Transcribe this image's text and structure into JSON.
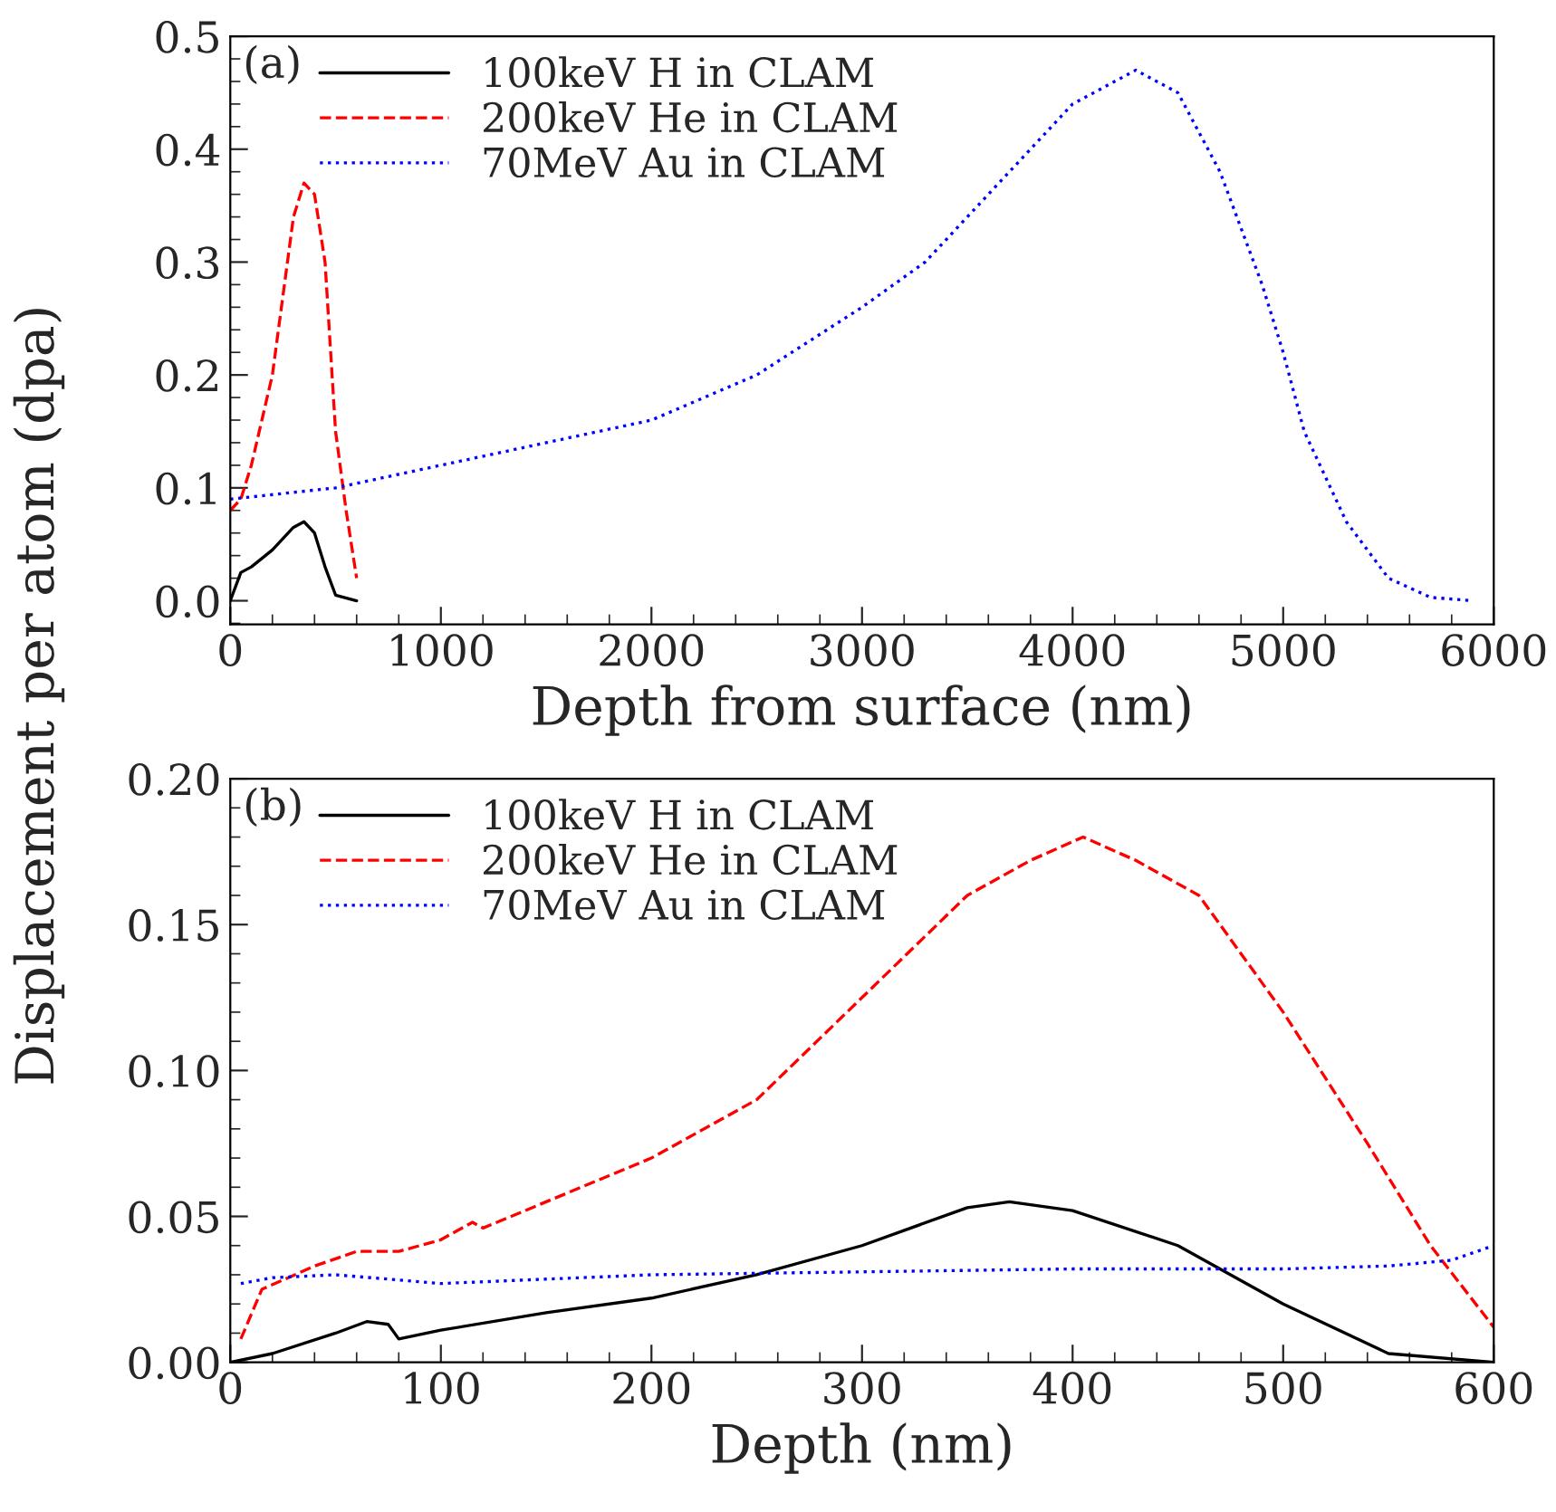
{
  "chart_data": [
    {
      "type": "line",
      "ylabel": "Displacement per atom (dpa)",
      "xlabel": "Depth from surface (nm)",
      "annotations": [
        "(a)"
      ],
      "xlim": [
        0,
        6000
      ],
      "ylim": [
        -0.021,
        0.5
      ],
      "xticks": [
        0,
        1000,
        2000,
        3000,
        4000,
        5000,
        6000
      ],
      "yticks": [
        {
          "value": 0,
          "label": "0.0"
        },
        {
          "value": 0.1,
          "label": "0.1"
        },
        {
          "value": 0.2,
          "label": "0.2"
        },
        {
          "value": 0.3,
          "label": "0.3"
        },
        {
          "value": 0.4,
          "label": "0.4"
        },
        {
          "value": 0.5,
          "label": "0.5"
        }
      ],
      "legend": "top left",
      "grid": false,
      "series": [
        {
          "name": "100keV H in CLAM",
          "color": "#000000",
          "line_style": "solid",
          "x": [
            0,
            50,
            100,
            200,
            300,
            350,
            400,
            450,
            500,
            600
          ],
          "values": [
            0.0,
            0.025,
            0.03,
            0.045,
            0.065,
            0.07,
            0.06,
            0.03,
            0.005,
            0.0
          ]
        },
        {
          "name": "200keV He in CLAM",
          "color": "#ff0000",
          "line_style": "dashed",
          "x": [
            0,
            50,
            100,
            200,
            250,
            300,
            350,
            400,
            450,
            500,
            550,
            600
          ],
          "values": [
            0.08,
            0.09,
            0.12,
            0.2,
            0.27,
            0.34,
            0.37,
            0.36,
            0.3,
            0.15,
            0.08,
            0.02
          ]
        },
        {
          "name": "70MeV Au in CLAM",
          "color": "#0000ff",
          "line_style": "dotted",
          "x": [
            0,
            500,
            1000,
            1500,
            2000,
            2500,
            3000,
            3300,
            3500,
            3800,
            4000,
            4300,
            4500,
            4700,
            4900,
            5000,
            5100,
            5300,
            5500,
            5700,
            5900
          ],
          "values": [
            0.09,
            0.1,
            0.12,
            0.14,
            0.16,
            0.2,
            0.26,
            0.3,
            0.34,
            0.4,
            0.44,
            0.47,
            0.45,
            0.38,
            0.28,
            0.22,
            0.15,
            0.07,
            0.02,
            0.003,
            0.0
          ]
        }
      ]
    },
    {
      "type": "line",
      "xlabel": "Depth (nm)",
      "annotations": [
        "(b)"
      ],
      "xlim": [
        0,
        600
      ],
      "ylim": [
        0,
        0.2
      ],
      "xticks": [
        0,
        100,
        200,
        300,
        400,
        500,
        600
      ],
      "yticks": [
        {
          "value": 0,
          "label": "0.00"
        },
        {
          "value": 0.05,
          "label": "0.05"
        },
        {
          "value": 0.1,
          "label": "0.10"
        },
        {
          "value": 0.15,
          "label": "0.15"
        },
        {
          "value": 0.2,
          "label": "0.20"
        }
      ],
      "legend": "top left",
      "grid": false,
      "series": [
        {
          "name": "100keV H in CLAM",
          "color": "#000000",
          "line_style": "solid",
          "x": [
            0,
            20,
            50,
            65,
            75,
            80,
            100,
            150,
            200,
            250,
            300,
            350,
            370,
            400,
            450,
            500,
            550,
            600
          ],
          "values": [
            0.0,
            0.003,
            0.01,
            0.014,
            0.013,
            0.008,
            0.011,
            0.017,
            0.022,
            0.03,
            0.04,
            0.053,
            0.055,
            0.052,
            0.04,
            0.02,
            0.003,
            0.0
          ]
        },
        {
          "name": "200keV He in CLAM",
          "color": "#ff0000",
          "line_style": "dashed",
          "x": [
            5,
            15,
            40,
            60,
            80,
            100,
            115,
            120,
            150,
            200,
            250,
            300,
            350,
            380,
            405,
            430,
            460,
            500,
            540,
            570,
            600
          ],
          "values": [
            0.008,
            0.025,
            0.033,
            0.038,
            0.038,
            0.042,
            0.048,
            0.046,
            0.055,
            0.07,
            0.09,
            0.125,
            0.16,
            0.172,
            0.18,
            0.172,
            0.16,
            0.12,
            0.075,
            0.04,
            0.012
          ]
        },
        {
          "name": "70MeV Au in CLAM",
          "color": "#0000ff",
          "line_style": "dotted",
          "x": [
            5,
            20,
            50,
            100,
            200,
            300,
            400,
            500,
            550,
            580,
            600
          ],
          "values": [
            0.027,
            0.029,
            0.03,
            0.027,
            0.03,
            0.031,
            0.032,
            0.032,
            0.033,
            0.035,
            0.04
          ]
        }
      ]
    }
  ]
}
